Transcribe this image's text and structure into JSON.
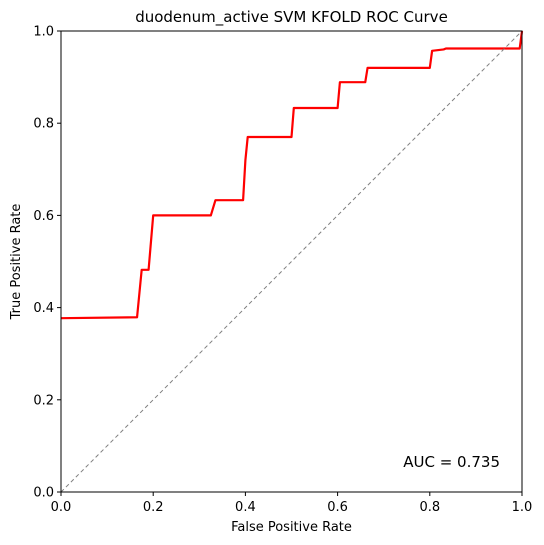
{
  "chart_data": {
    "type": "line",
    "title": "duodenum_active SVM KFOLD ROC Curve",
    "xlabel": "False Positive Rate",
    "ylabel": "True Positive Rate",
    "xlim": [
      0.0,
      1.0
    ],
    "ylim": [
      0.0,
      1.0
    ],
    "xticks": [
      "0.0",
      "0.2",
      "0.4",
      "0.6",
      "0.8",
      "1.0"
    ],
    "yticks": [
      "0.0",
      "0.2",
      "0.4",
      "0.6",
      "0.8",
      "1.0"
    ],
    "grid": false,
    "annotation": "AUC = 0.735",
    "series": [
      {
        "color": "#ff0000",
        "style": "solid",
        "x": [
          0.0,
          0.165,
          0.175,
          0.19,
          0.2,
          0.325,
          0.335,
          0.395,
          0.4,
          0.405,
          0.5,
          0.505,
          0.6,
          0.605,
          0.66,
          0.665,
          0.8,
          0.805,
          0.83,
          0.835,
          0.995,
          1.0
        ],
        "y": [
          0.377,
          0.379,
          0.482,
          0.482,
          0.6,
          0.6,
          0.633,
          0.633,
          0.72,
          0.77,
          0.77,
          0.833,
          0.833,
          0.889,
          0.889,
          0.92,
          0.92,
          0.957,
          0.96,
          0.962,
          0.962,
          1.0
        ]
      },
      {
        "color": "#808080",
        "style": "dashed",
        "x": [
          0.0,
          1.0
        ],
        "y": [
          0.0,
          1.0
        ]
      }
    ]
  }
}
